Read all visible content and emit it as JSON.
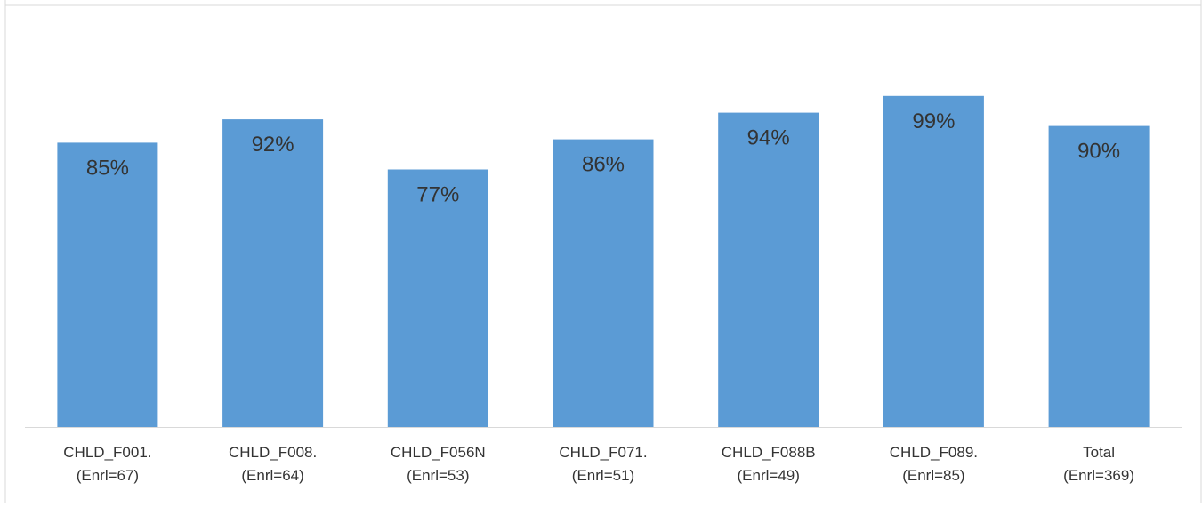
{
  "chart_data": {
    "type": "bar",
    "categories": [
      [
        "CHLD_F001.",
        "(Enrl=67)"
      ],
      [
        "CHLD_F008.",
        "(Enrl=64)"
      ],
      [
        "CHLD_F056N",
        "(Enrl=53)"
      ],
      [
        "CHLD_F071.",
        "(Enrl=51)"
      ],
      [
        "CHLD_F088B",
        "(Enrl=49)"
      ],
      [
        "CHLD_F089.",
        "(Enrl=85)"
      ],
      [
        "Total",
        "(Enrl=369)"
      ]
    ],
    "values": [
      85,
      92,
      77,
      86,
      94,
      99,
      90
    ],
    "data_labels": [
      "85%",
      "92%",
      "77%",
      "86%",
      "94%",
      "99%",
      "90%"
    ],
    "ylim": [
      0,
      120
    ],
    "grid": false,
    "legend": "none",
    "colors": {
      "bar": "#5b9bd5",
      "axis": "#d9d9d9",
      "text": "#333333",
      "frame": "#d9d9d9"
    }
  }
}
